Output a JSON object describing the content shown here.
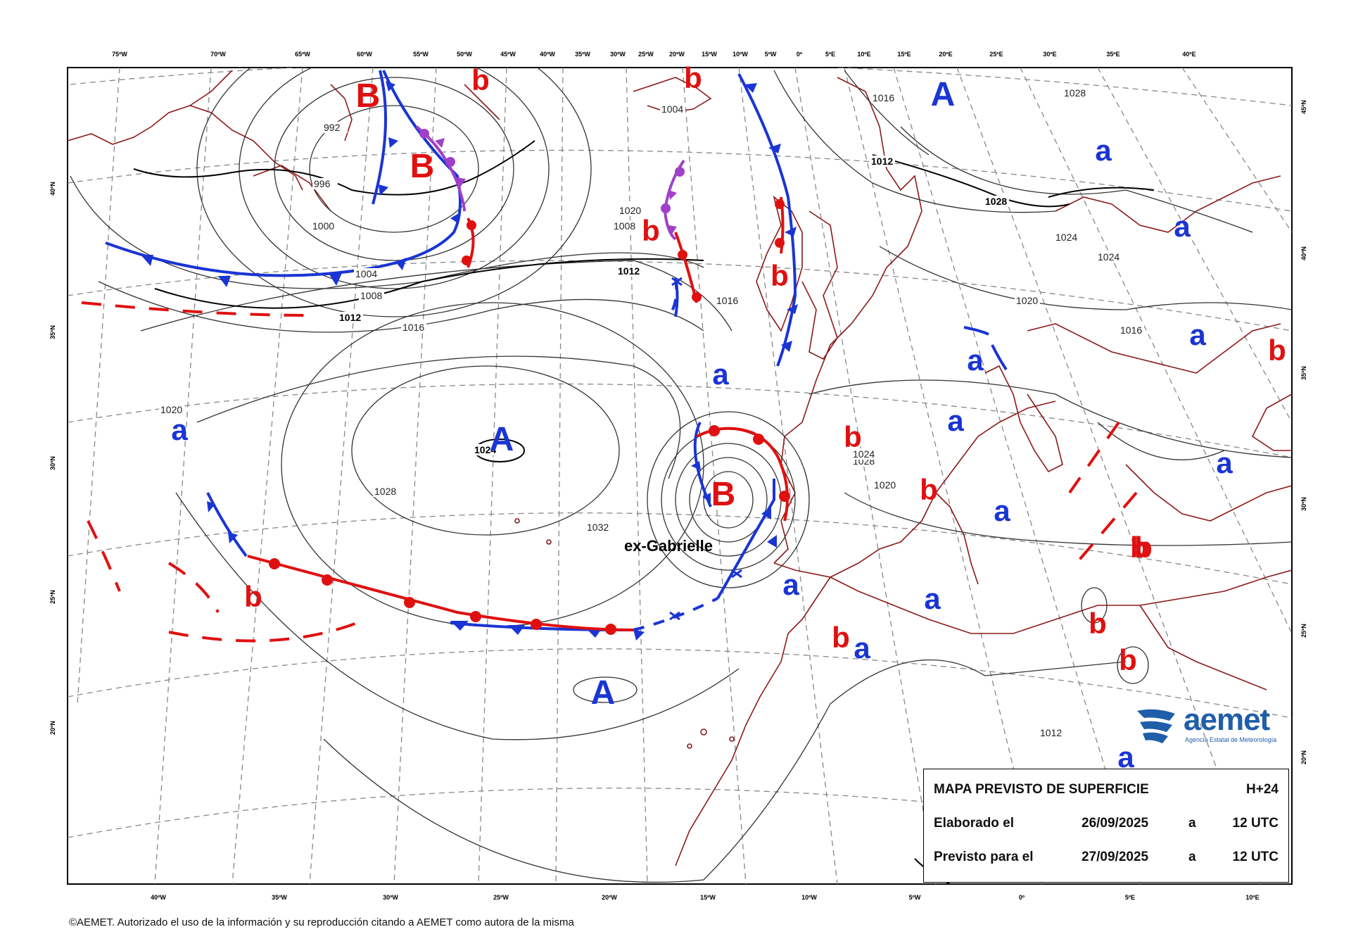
{
  "map": {
    "top_ticks": [
      "75ºW",
      "70ºW",
      "65ºW",
      "60ºW",
      "55ºW",
      "50ºW",
      "45ºW",
      "40ºW",
      "35ºW",
      "30ºW",
      "25ºW",
      "20ºW",
      "15ºW",
      "10ºW",
      "5ºW",
      "0º",
      "5ºE",
      "10ºE",
      "15ºE",
      "20ºE",
      "25ºE",
      "30ºE",
      "35ºE",
      "40ºE"
    ],
    "bottom_ticks": [
      "40ºW",
      "35ºW",
      "30ºW",
      "25ºW",
      "20ºW",
      "15ºW",
      "10ºW",
      "5ºW",
      "0º",
      "5ºE",
      "10ºE"
    ],
    "left_ticks": [
      "40ºN",
      "35ºN",
      "30ºN",
      "25ºN",
      "20ºN"
    ],
    "right_ticks": [
      "45ºN",
      "40ºN",
      "35ºN",
      "30ºN",
      "25ºN",
      "20ºN"
    ],
    "colors": {
      "high": "#1a35d4",
      "low": "#e01010",
      "cold_front": "#1a35d4",
      "warm_front": "#e01010",
      "occluded_front": "#a040c8",
      "coast": "#8b1a1a",
      "isobar": "#333333",
      "grid": "#888888"
    },
    "isobar_labels": [
      "992",
      "996",
      "1000",
      "1004",
      "1008",
      "1012",
      "1016",
      "1020",
      "1024",
      "1028",
      "1032",
      "1028",
      "1024",
      "1020",
      "1016",
      "1012",
      "1004",
      "1008",
      "1012",
      "1016",
      "1020",
      "1024",
      "1028",
      "1028",
      "1024",
      "1020",
      "1016",
      "1012"
    ],
    "storm_label": "ex-Gabrielle",
    "pressure_centers": [
      {
        "letter": "B",
        "kind": "low"
      },
      {
        "letter": "b",
        "kind": "low"
      },
      {
        "letter": "B",
        "kind": "low"
      },
      {
        "letter": "b",
        "kind": "low"
      },
      {
        "letter": "A",
        "kind": "high"
      },
      {
        "letter": "b",
        "kind": "low"
      },
      {
        "letter": "b",
        "kind": "low"
      },
      {
        "letter": "a",
        "kind": "high"
      },
      {
        "letter": "a",
        "kind": "high"
      },
      {
        "letter": "a",
        "kind": "high"
      },
      {
        "letter": "a",
        "kind": "high"
      },
      {
        "letter": "A",
        "kind": "high"
      },
      {
        "letter": "B",
        "kind": "low"
      },
      {
        "letter": "b",
        "kind": "low"
      },
      {
        "letter": "b",
        "kind": "low"
      },
      {
        "letter": "a",
        "kind": "high"
      },
      {
        "letter": "a",
        "kind": "high"
      },
      {
        "letter": "a",
        "kind": "high"
      },
      {
        "letter": "a",
        "kind": "high"
      },
      {
        "letter": "b",
        "kind": "low"
      },
      {
        "letter": "b",
        "kind": "low"
      },
      {
        "letter": "a",
        "kind": "high"
      },
      {
        "letter": "a",
        "kind": "high"
      },
      {
        "letter": "b",
        "kind": "low"
      },
      {
        "letter": "b",
        "kind": "low"
      },
      {
        "letter": "b",
        "kind": "low"
      },
      {
        "letter": "b",
        "kind": "low"
      },
      {
        "letter": "a",
        "kind": "high"
      },
      {
        "letter": "A",
        "kind": "high"
      },
      {
        "letter": "a",
        "kind": "high"
      },
      {
        "letter": "a",
        "kind": "high"
      },
      {
        "letter": "b",
        "kind": "low"
      }
    ]
  },
  "info": {
    "title": "MAPA PREVISTO DE SUPERFICIE",
    "lead": "H+24",
    "row2_label": "Elaborado el",
    "row2_date": "26/09/2025",
    "row2_a": "a",
    "row2_time": "12 UTC",
    "row3_label": "Previsto para el",
    "row3_date": "27/09/2025",
    "row3_a": "a",
    "row3_time": "12 UTC"
  },
  "logo": {
    "name": "aemet",
    "subtitle": "Agencia Estatal de Meteorología"
  },
  "copyright": "©AEMET. Autorizado el uso de la información y su reproducción citando a AEMET como autora de la misma"
}
